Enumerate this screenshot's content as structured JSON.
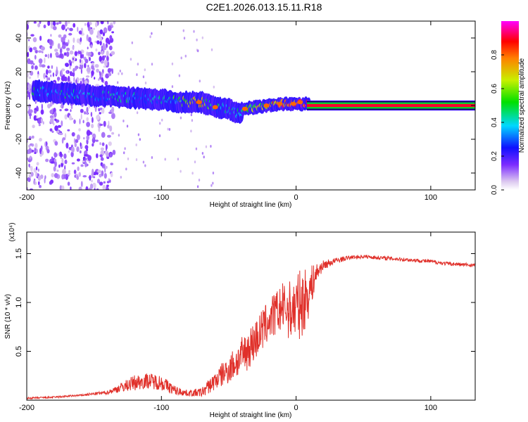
{
  "title": "C2E1.2026.013.15.11.R18",
  "chart_data": [
    {
      "type": "heatmap",
      "name": "spectrogram",
      "xlabel": "Height of straight line (km)",
      "ylabel": "Frequency (Hz)",
      "xlim": [
        -200,
        133
      ],
      "ylim": [
        -50,
        50
      ],
      "xticks": [
        -200,
        -100,
        0,
        100
      ],
      "xtick_labels": [
        "-200",
        "-100",
        "0",
        "100"
      ],
      "yticks": [
        -40,
        -20,
        0,
        20,
        40
      ],
      "ytick_labels": [
        "-40",
        "-20",
        "0",
        "20",
        "40"
      ],
      "colorbar": {
        "label": "Normalized spectral amplitude",
        "range": [
          0,
          1
        ],
        "ticks": [
          0.0,
          0.2,
          0.4,
          0.6,
          0.8
        ],
        "tick_labels": [
          "0.0",
          "0.2",
          "0.4",
          "0.6",
          "0.8"
        ]
      },
      "ridge": {
        "x": [
          -195,
          -185,
          -170,
          -150,
          -130,
          -110,
          -95,
          -85,
          -78,
          -70,
          -60,
          -50,
          -42,
          -38,
          -30,
          -20,
          -10,
          0,
          10,
          133
        ],
        "freq": [
          9,
          8,
          7,
          6,
          5,
          4,
          3,
          2,
          2,
          2,
          -1,
          -2,
          -5,
          -2,
          -1,
          0,
          1,
          1,
          1,
          1
        ],
        "amplitude": [
          0.4,
          0.35,
          0.35,
          0.3,
          0.35,
          0.3,
          0.35,
          0.5,
          0.7,
          0.7,
          0.4,
          0.35,
          0.5,
          0.5,
          0.6,
          0.7,
          0.8,
          0.8,
          0.9,
          0.9
        ]
      }
    },
    {
      "type": "line",
      "name": "snr",
      "xlabel": "Height of straight line (km)",
      "ylabel": "SNR (10 * v/v)",
      "scale_label": "(x10⁴)",
      "xlim": [
        -200,
        133
      ],
      "ylim": [
        0,
        1.72
      ],
      "xticks": [
        -200,
        -100,
        0,
        100
      ],
      "xtick_labels": [
        "-200",
        "-100",
        "0",
        "100"
      ],
      "yticks": [
        0.5,
        1.0,
        1.5
      ],
      "ytick_labels": [
        "0.5",
        "1.0",
        "1.5"
      ],
      "color": "#e0302a",
      "series": [
        {
          "name": "SNR",
          "x": [
            -200,
            -180,
            -160,
            -140,
            -130,
            -120,
            -110,
            -100,
            -90,
            -80,
            -70,
            -60,
            -50,
            -40,
            -30,
            -20,
            -10,
            -5,
            0,
            5,
            10,
            15,
            20,
            30,
            40,
            50,
            60,
            70,
            80,
            90,
            100,
            110,
            120,
            133
          ],
          "y": [
            0.02,
            0.03,
            0.05,
            0.08,
            0.13,
            0.18,
            0.2,
            0.18,
            0.1,
            0.07,
            0.08,
            0.2,
            0.32,
            0.45,
            0.62,
            0.82,
            0.95,
            0.92,
            0.95,
            1.0,
            1.12,
            1.3,
            1.38,
            1.43,
            1.46,
            1.47,
            1.46,
            1.45,
            1.44,
            1.43,
            1.42,
            1.4,
            1.39,
            1.38
          ],
          "noise": [
            0.01,
            0.01,
            0.01,
            0.02,
            0.05,
            0.08,
            0.08,
            0.08,
            0.05,
            0.03,
            0.05,
            0.1,
            0.15,
            0.2,
            0.22,
            0.22,
            0.25,
            0.3,
            0.35,
            0.35,
            0.25,
            0.1,
            0.05,
            0.03,
            0.02,
            0.02,
            0.02,
            0.02,
            0.02,
            0.02,
            0.02,
            0.02,
            0.02,
            0.02
          ]
        }
      ]
    }
  ]
}
